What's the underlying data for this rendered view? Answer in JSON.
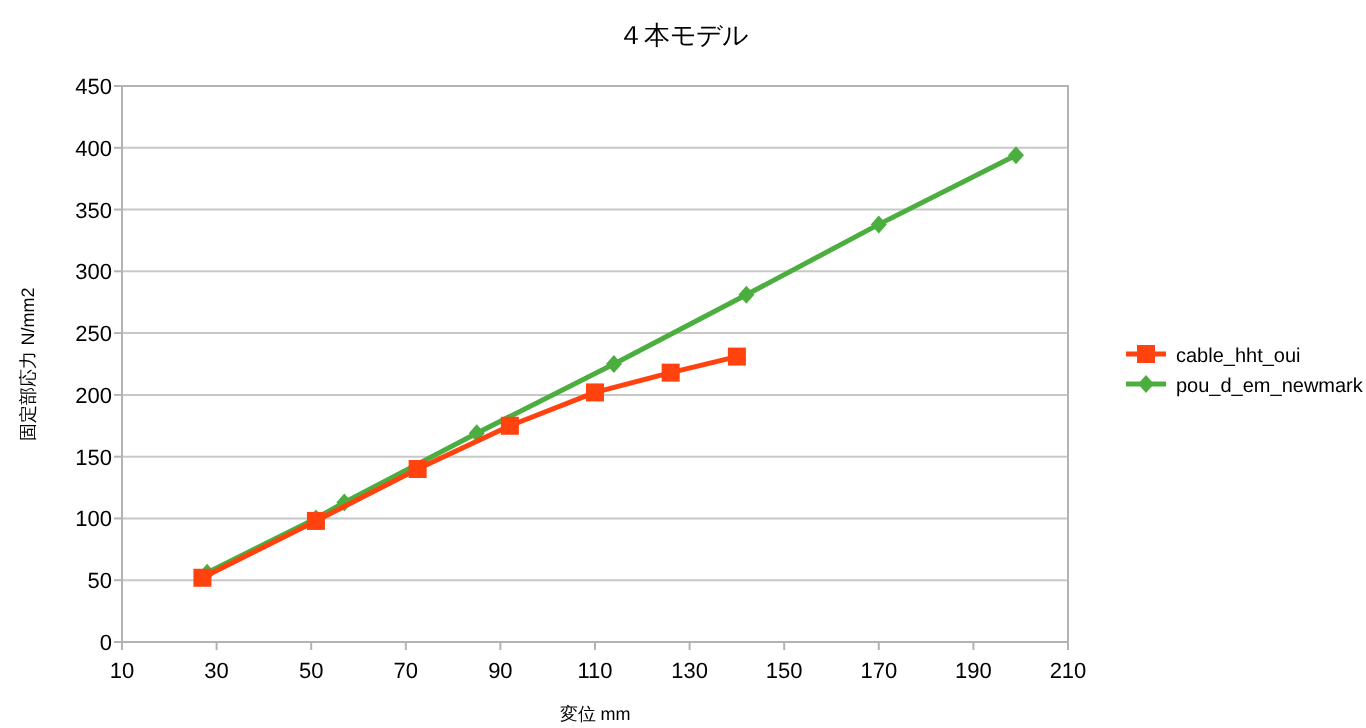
{
  "chart_data": {
    "type": "line",
    "title": "４本モデル",
    "xlabel": "変位 mm",
    "ylabel": "固定部応力 N/mm2",
    "xlim": [
      10,
      210
    ],
    "xticks": [
      10,
      30,
      50,
      70,
      90,
      110,
      130,
      150,
      170,
      190,
      210
    ],
    "ylim": [
      0,
      450
    ],
    "yticks": [
      0,
      50,
      100,
      150,
      200,
      250,
      300,
      350,
      400,
      450
    ],
    "grid": "y",
    "legend": "right",
    "series": [
      {
        "name": "cable_hht_oui",
        "color": "#ff420e",
        "marker": "square",
        "x": [
          27,
          51,
          72.5,
          92,
          110,
          126,
          140
        ],
        "values": [
          52,
          98,
          140,
          175,
          202,
          218,
          231
        ]
      },
      {
        "name": "pou_d_em_newmark",
        "color": "#4cae3f",
        "marker": "diamond",
        "x": [
          28,
          51,
          57,
          85,
          114,
          142,
          170,
          199
        ],
        "values": [
          56,
          100,
          113,
          169,
          225,
          281,
          338,
          394
        ]
      }
    ]
  }
}
